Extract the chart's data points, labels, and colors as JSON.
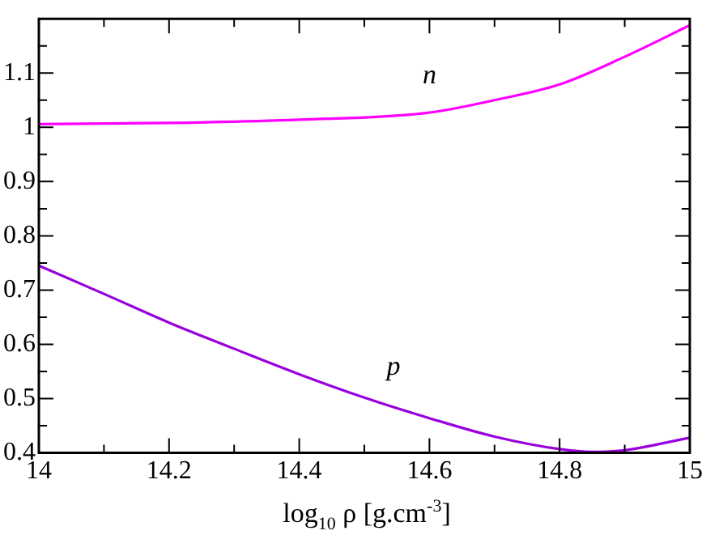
{
  "chart_data": {
    "type": "line",
    "xlabel": "log$_{10}$ ρ [g.cm$^{-3}$]",
    "series": [
      {
        "name": "n",
        "color": "#ff00ff",
        "x": [
          14,
          14.2,
          14.4,
          14.6,
          14.7,
          14.8,
          14.9,
          15
        ],
        "values": [
          1.006,
          1.008,
          1.014,
          1.027,
          1.05,
          1.079,
          1.13,
          1.188
        ]
      },
      {
        "name": "p",
        "color": "#9900dd",
        "x": [
          14,
          14.1,
          14.2,
          14.3,
          14.4,
          14.5,
          14.6,
          14.7,
          14.8,
          14.85,
          14.9,
          15
        ],
        "values": [
          0.745,
          0.693,
          0.64,
          0.592,
          0.545,
          0.502,
          0.464,
          0.43,
          0.407,
          0.402,
          0.405,
          0.428
        ]
      }
    ],
    "xlim": [
      14,
      15
    ],
    "ylim": [
      0.4,
      1.2
    ],
    "xticks": [
      14,
      {
        "value": 14.1,
        "label": null
      },
      14.2,
      {
        "value": 14.3,
        "label": null
      },
      14.4,
      {
        "value": 14.5,
        "label": null
      },
      14.6,
      {
        "value": 14.7,
        "label": null
      },
      14.8,
      {
        "value": 14.9,
        "label": null
      },
      15
    ],
    "yticks": [
      0.4,
      {
        "value": 0.45,
        "label": null
      },
      0.5,
      {
        "value": 0.55,
        "label": null
      },
      0.6,
      {
        "value": 0.65,
        "label": null
      },
      0.7,
      {
        "value": 0.75,
        "label": null
      },
      0.8,
      {
        "value": 0.85,
        "label": null
      },
      0.9,
      {
        "value": 0.95,
        "label": null
      },
      1,
      {
        "value": 1.05,
        "label": null
      },
      1.1,
      {
        "value": 1.15,
        "label": null
      }
    ],
    "grid": false,
    "legend": false,
    "marker": "none",
    "line_style": "solid"
  }
}
